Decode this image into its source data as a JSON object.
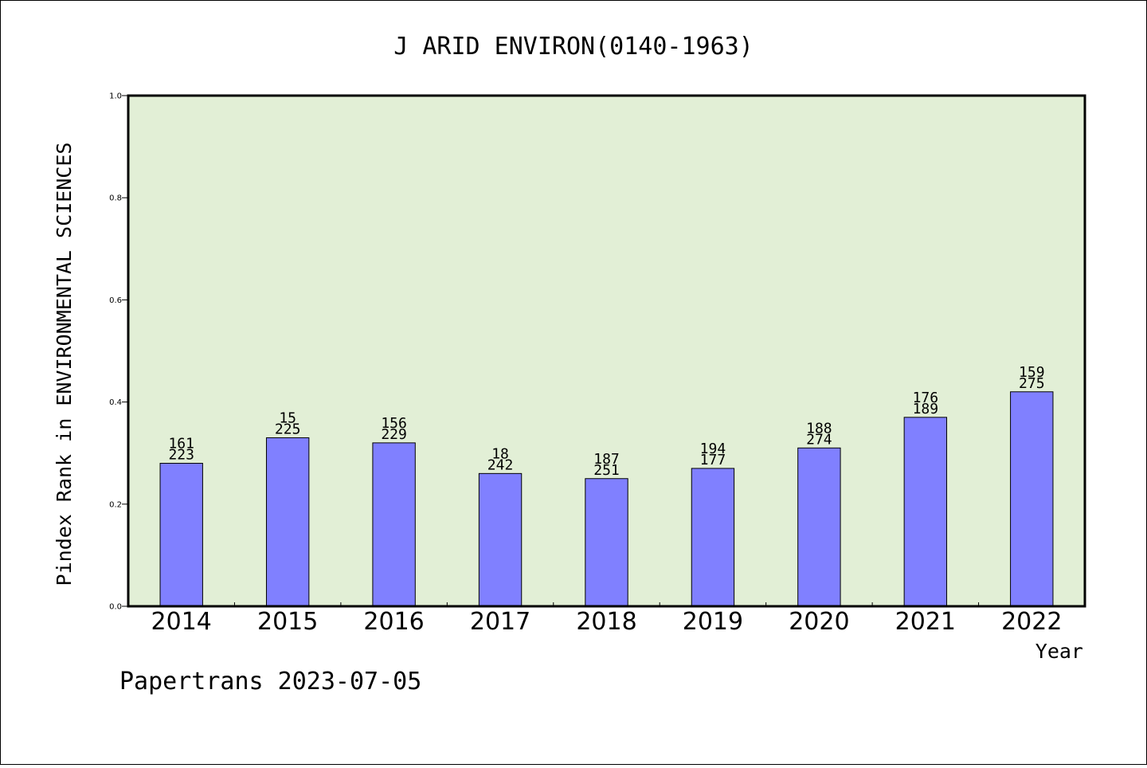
{
  "chart_data": {
    "type": "bar",
    "title": "J ARID ENVIRON(0140-1963)",
    "xlabel": "Year",
    "ylabel": "Pindex Rank in ENVIRONMENTAL SCIENCES",
    "categories": [
      "2014",
      "2015",
      "2016",
      "2017",
      "2018",
      "2019",
      "2020",
      "2021",
      "2022"
    ],
    "values": [
      0.28,
      0.33,
      0.32,
      0.26,
      0.25,
      0.27,
      0.31,
      0.37,
      0.42
    ],
    "rank_labels": [
      "161",
      "15",
      "156",
      "18",
      "187",
      "194",
      "188",
      "176",
      "159"
    ],
    "total_labels": [
      "223",
      "225",
      "229",
      "242",
      "251",
      "177",
      "274",
      "189",
      "275"
    ],
    "ylim": [
      0,
      1.0
    ],
    "yticks": [
      "0.0",
      "0.2",
      "0.4",
      "0.6",
      "0.8",
      "1.0"
    ],
    "grid": false,
    "colors": {
      "bar_fill": "#8080ff",
      "bar_stroke": "#000000",
      "plot_bg": "#e2efd6",
      "axis": "#000000"
    }
  },
  "footer": {
    "text": "Papertrans 2023-07-05"
  }
}
